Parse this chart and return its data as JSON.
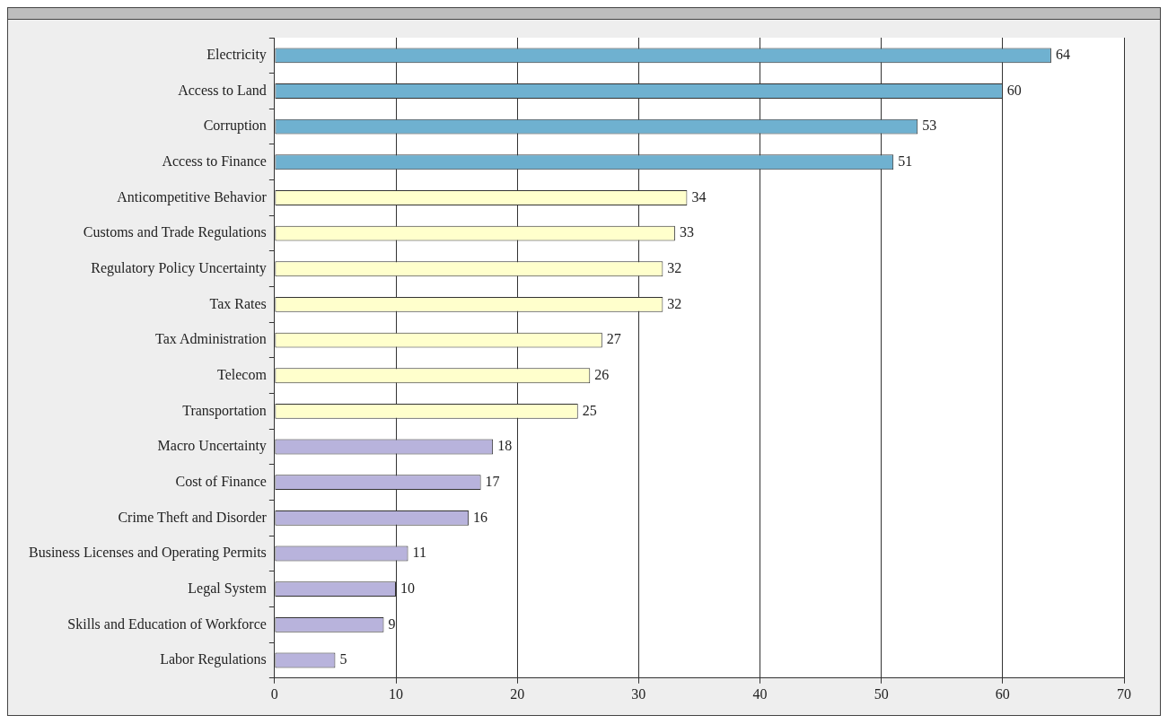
{
  "chart_data": {
    "type": "bar",
    "orientation": "horizontal",
    "categories": [
      "Electricity",
      "Access to Land",
      "Corruption",
      "Access to Finance",
      "Anticompetitive Behavior",
      "Customs and Trade Regulations",
      "Regulatory Policy Uncertainty",
      "Tax Rates",
      "Tax Administration",
      "Telecom",
      "Transportation",
      "Macro Uncertainty",
      "Cost of Finance",
      "Crime Theft and Disorder",
      "Business Licenses and Operating Permits",
      "Legal System",
      "Skills and Education of Workforce",
      "Labor Regulations"
    ],
    "values": [
      64,
      60,
      53,
      51,
      34,
      33,
      32,
      32,
      27,
      26,
      25,
      18,
      17,
      16,
      11,
      10,
      9,
      5
    ],
    "colors": [
      "#6fb1d0",
      "#6fb1d0",
      "#6fb1d0",
      "#6fb1d0",
      "#ffffcc",
      "#ffffcc",
      "#ffffcc",
      "#ffffcc",
      "#ffffcc",
      "#ffffcc",
      "#ffffcc",
      "#b8b3dc",
      "#b8b3dc",
      "#b8b3dc",
      "#b8b3dc",
      "#b8b3dc",
      "#b8b3dc",
      "#b8b3dc"
    ],
    "xlim": [
      0,
      70
    ],
    "xticks": [
      0,
      10,
      20,
      30,
      40,
      50,
      60,
      70
    ],
    "grid": "x",
    "data_labels": true,
    "legend": false
  }
}
